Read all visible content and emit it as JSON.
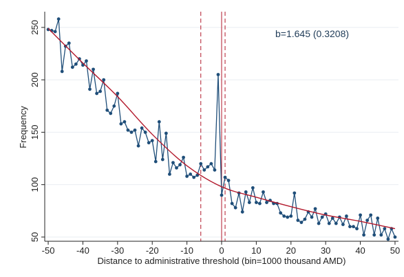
{
  "chart_data": {
    "type": "line",
    "title": "",
    "xlabel": "Distance to administrative threshold (bin=1000 thousand AMD)",
    "ylabel": "Frequency",
    "xlim": [
      -51,
      51
    ],
    "ylim": [
      46,
      265
    ],
    "xticks": [
      -50,
      -40,
      -30,
      -20,
      -10,
      0,
      10,
      20,
      30,
      40,
      50
    ],
    "yticks": [
      50,
      100,
      150,
      200,
      250
    ],
    "xtick_labels": [
      "-50",
      "-40",
      "-30",
      "-20",
      "-10",
      "0",
      "10",
      "20",
      "30",
      "40",
      "50"
    ],
    "ytick_labels": [
      "50",
      "100",
      "150",
      "200",
      "250"
    ],
    "grid": true,
    "annotation": "b=1.645 (0.3208)",
    "series": [
      {
        "x": [
          -50,
          -49,
          -48,
          -47,
          -46,
          -45,
          -44,
          -43,
          -42,
          -41,
          -40,
          -39,
          -38,
          -37,
          -36,
          -35,
          -34,
          -33,
          -32,
          -31,
          -30,
          -29,
          -28,
          -27,
          -26,
          -25,
          -24,
          -23,
          -22,
          -21,
          -20,
          -19,
          -18,
          -17,
          -16,
          -15,
          -14,
          -13,
          -12,
          -11,
          -10,
          -9,
          -8,
          -7,
          -6,
          -5,
          -4,
          -3,
          -2,
          -1,
          0,
          1,
          2,
          3,
          4,
          5,
          6,
          7,
          8,
          9,
          10,
          11,
          12,
          13,
          14,
          15,
          16,
          17,
          18,
          19,
          20,
          21,
          22,
          23,
          24,
          25,
          26,
          27,
          28,
          29,
          30,
          31,
          32,
          33,
          34,
          35,
          36,
          37,
          38,
          39,
          40,
          41,
          42,
          43,
          44,
          45,
          46,
          47,
          48,
          49,
          50
        ],
        "values": [
          248,
          247,
          246,
          258,
          208,
          232,
          235,
          212,
          215,
          220,
          214,
          218,
          191,
          210,
          187,
          189,
          200,
          171,
          168,
          175,
          187,
          158,
          160,
          152,
          150,
          152,
          137,
          154,
          150,
          140,
          142,
          122,
          160,
          124,
          149,
          110,
          121,
          116,
          119,
          126,
          108,
          110,
          107,
          109,
          120,
          114,
          117,
          120,
          114,
          205,
          90,
          107,
          104,
          82,
          78,
          92,
          74,
          93,
          83,
          97,
          83,
          82,
          93,
          83,
          85,
          82,
          82,
          73,
          70,
          69,
          70,
          92,
          66,
          64,
          67,
          74,
          69,
          77,
          63,
          69,
          72,
          63,
          68,
          63,
          69,
          62,
          70,
          60,
          60,
          58,
          71,
          52,
          66,
          71,
          52,
          68,
          52,
          58,
          48,
          58,
          50
        ],
        "color": "#1f4e79"
      },
      {
        "x": [
          -50,
          -40,
          -30,
          -20,
          -10,
          0,
          10,
          20,
          30,
          40,
          50
        ],
        "values": [
          249,
          216,
          184,
          148,
          118,
          98,
          88,
          79,
          71,
          65,
          58
        ],
        "color": "#b2182b"
      }
    ],
    "reference_lines": [
      {
        "x": 0,
        "style": "solid",
        "color": "#b2182b"
      },
      {
        "x": -6,
        "style": "dashed",
        "color": "#b2182b"
      },
      {
        "x": 1,
        "style": "dashed",
        "color": "#b2182b"
      }
    ]
  }
}
